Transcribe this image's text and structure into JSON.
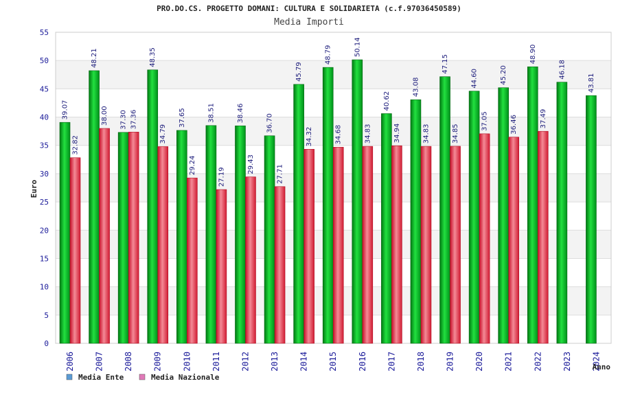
{
  "chart_data": {
    "type": "bar",
    "title": "PRO.DO.CS. PROGETTO DOMANI: CULTURA E SOLIDARIETA (c.f.97036450589)",
    "subtitle": "Media Importi",
    "xlabel": "Anno",
    "ylabel": "Euro",
    "ylim": [
      0,
      55
    ],
    "yticks": [
      0,
      5,
      10,
      15,
      20,
      25,
      30,
      35,
      40,
      45,
      50,
      55
    ],
    "grid": true,
    "legend_position": "bottom-left",
    "categories": [
      "2006",
      "2007",
      "2008",
      "2009",
      "2010",
      "2011",
      "2012",
      "2013",
      "2014",
      "2015",
      "2016",
      "2017",
      "2018",
      "2019",
      "2020",
      "2021",
      "2022",
      "2023",
      "2024"
    ],
    "series": [
      {
        "name": "Media Ente",
        "color": "#00b81f",
        "legend_color": "#5b9bd5",
        "values": [
          39.07,
          48.21,
          37.3,
          48.35,
          37.65,
          38.51,
          38.46,
          36.7,
          45.79,
          48.79,
          50.14,
          40.62,
          43.08,
          47.15,
          44.6,
          45.2,
          48.9,
          46.18,
          43.81
        ],
        "labels": [
          "39.07",
          "48.21",
          "37.30",
          "48.35",
          "37.65",
          "38.51",
          "38.46",
          "36.70",
          "45.79",
          "48.79",
          "50.14",
          "40.62",
          "43.08",
          "47.15",
          "44.60",
          "45.20",
          "48.90",
          "46.18",
          "43.81"
        ]
      },
      {
        "name": "Media Nazionale",
        "color": "#e8283c",
        "legend_color": "#e07ab8",
        "values": [
          32.82,
          38.0,
          37.36,
          34.79,
          29.24,
          27.19,
          29.43,
          27.71,
          34.32,
          34.68,
          34.83,
          34.94,
          34.83,
          34.85,
          37.05,
          36.46,
          37.49,
          null,
          null
        ],
        "labels": [
          "32.82",
          "38.00",
          "37.36",
          "34.79",
          "29.24",
          "27.19",
          "29.43",
          "27.71",
          "34.32",
          "34.68",
          "34.83",
          "34.94",
          "34.83",
          "34.85",
          "37.05",
          "36.46",
          "37.49",
          null,
          null
        ]
      }
    ]
  }
}
